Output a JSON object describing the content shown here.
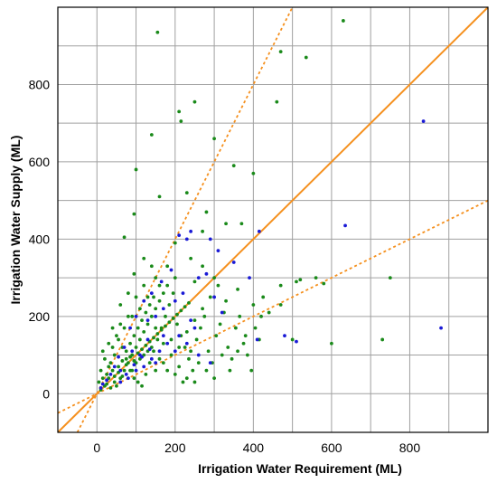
{
  "chart_data": {
    "type": "scatter",
    "xlabel": "Irrigation Water Requirement (ML)",
    "ylabel": "Irrigation Water Supply (ML)",
    "xlim": [
      -100,
      1000
    ],
    "ylim": [
      -100,
      1000
    ],
    "x_ticks": [
      "0",
      "200",
      "400",
      "600",
      "800"
    ],
    "y_ticks": [
      "0",
      "200",
      "400",
      "600",
      "800"
    ],
    "grid": true,
    "legend": "none",
    "colors": {
      "series_green": "#1a8a1a",
      "series_blue": "#1a1ad6",
      "reference_line": "#f5901e",
      "grid": "#a0a0a0"
    },
    "reference_lines": [
      {
        "style": "solid",
        "slope": 1.0
      },
      {
        "style": "dotted",
        "slope": 2.0
      },
      {
        "style": "dotted",
        "slope": 0.5
      }
    ],
    "series": [
      {
        "color": "green",
        "points": [
          [
            155,
            935
          ],
          [
            470,
            885
          ],
          [
            535,
            870
          ],
          [
            630,
            965
          ],
          [
            250,
            755
          ],
          [
            460,
            755
          ],
          [
            210,
            730
          ],
          [
            140,
            670
          ],
          [
            300,
            660
          ],
          [
            215,
            705
          ],
          [
            100,
            580
          ],
          [
            350,
            590
          ],
          [
            400,
            570
          ],
          [
            230,
            520
          ],
          [
            160,
            510
          ],
          [
            280,
            470
          ],
          [
            95,
            465
          ],
          [
            70,
            405
          ],
          [
            330,
            440
          ],
          [
            270,
            420
          ],
          [
            200,
            390
          ],
          [
            370,
            440
          ],
          [
            520,
            295
          ],
          [
            470,
            280
          ],
          [
            510,
            290
          ],
          [
            580,
            285
          ],
          [
            560,
            300
          ],
          [
            750,
            300
          ],
          [
            730,
            140
          ],
          [
            600,
            130
          ],
          [
            500,
            140
          ],
          [
            360,
            270
          ],
          [
            400,
            230
          ],
          [
            420,
            200
          ],
          [
            380,
            150
          ],
          [
            440,
            210
          ],
          [
            470,
            230
          ],
          [
            330,
            240
          ],
          [
            300,
            300
          ],
          [
            250,
            290
          ],
          [
            180,
            330
          ],
          [
            150,
            300
          ],
          [
            120,
            350
          ],
          [
            95,
            310
          ],
          [
            80,
            260
          ],
          [
            60,
            230
          ],
          [
            40,
            170
          ],
          [
            30,
            130
          ],
          [
            20,
            90
          ],
          [
            10,
            60
          ],
          [
            5,
            30
          ],
          [
            15,
            110
          ],
          [
            25,
            50
          ],
          [
            35,
            80
          ],
          [
            45,
            100
          ],
          [
            55,
            140
          ],
          [
            65,
            120
          ],
          [
            75,
            90
          ],
          [
            85,
            60
          ],
          [
            95,
            40
          ],
          [
            105,
            30
          ],
          [
            115,
            20
          ],
          [
            125,
            50
          ],
          [
            135,
            80
          ],
          [
            145,
            110
          ],
          [
            155,
            140
          ],
          [
            165,
            170
          ],
          [
            175,
            200
          ],
          [
            185,
            230
          ],
          [
            195,
            260
          ],
          [
            205,
            180
          ],
          [
            215,
            150
          ],
          [
            225,
            120
          ],
          [
            235,
            90
          ],
          [
            245,
            60
          ],
          [
            255,
            140
          ],
          [
            265,
            170
          ],
          [
            275,
            200
          ],
          [
            285,
            110
          ],
          [
            295,
            80
          ],
          [
            305,
            150
          ],
          [
            315,
            180
          ],
          [
            325,
            210
          ],
          [
            335,
            120
          ],
          [
            345,
            90
          ],
          [
            355,
            170
          ],
          [
            365,
            200
          ],
          [
            375,
            130
          ],
          [
            385,
            100
          ],
          [
            395,
            60
          ],
          [
            405,
            170
          ],
          [
            415,
            140
          ],
          [
            425,
            250
          ],
          [
            50,
            20
          ],
          [
            60,
            40
          ],
          [
            70,
            60
          ],
          [
            80,
            80
          ],
          [
            90,
            100
          ],
          [
            100,
            120
          ],
          [
            110,
            140
          ],
          [
            120,
            160
          ],
          [
            130,
            180
          ],
          [
            140,
            200
          ],
          [
            150,
            220
          ],
          [
            160,
            240
          ],
          [
            170,
            260
          ],
          [
            40,
            60
          ],
          [
            45,
            30
          ],
          [
            55,
            70
          ],
          [
            65,
            45
          ],
          [
            75,
            110
          ],
          [
            85,
            130
          ],
          [
            95,
            150
          ],
          [
            105,
            170
          ],
          [
            115,
            190
          ],
          [
            125,
            210
          ],
          [
            135,
            230
          ],
          [
            145,
            250
          ],
          [
            30,
            40
          ],
          [
            20,
            20
          ],
          [
            10,
            10
          ],
          [
            60,
            180
          ],
          [
            90,
            200
          ],
          [
            110,
            220
          ],
          [
            130,
            250
          ],
          [
            150,
            170
          ],
          [
            170,
            130
          ],
          [
            190,
            100
          ],
          [
            210,
            70
          ],
          [
            230,
            40
          ],
          [
            250,
            30
          ],
          [
            100,
            80
          ],
          [
            120,
            100
          ],
          [
            140,
            120
          ],
          [
            160,
            90
          ],
          [
            180,
            60
          ],
          [
            200,
            50
          ],
          [
            220,
            30
          ],
          [
            240,
            110
          ],
          [
            260,
            80
          ],
          [
            280,
            60
          ],
          [
            300,
            40
          ],
          [
            320,
            100
          ],
          [
            340,
            60
          ],
          [
            360,
            110
          ],
          [
            90,
            60
          ],
          [
            110,
            90
          ],
          [
            130,
            110
          ],
          [
            150,
            60
          ],
          [
            170,
            80
          ],
          [
            190,
            140
          ],
          [
            210,
            120
          ],
          [
            230,
            160
          ],
          [
            250,
            190
          ],
          [
            270,
            220
          ],
          [
            290,
            250
          ],
          [
            310,
            280
          ],
          [
            270,
            330
          ],
          [
            240,
            350
          ],
          [
            200,
            300
          ],
          [
            180,
            280
          ],
          [
            160,
            280
          ],
          [
            140,
            330
          ],
          [
            120,
            280
          ],
          [
            100,
            250
          ],
          [
            80,
            200
          ],
          [
            70,
            170
          ],
          [
            50,
            150
          ],
          [
            40,
            120
          ],
          [
            30,
            70
          ],
          [
            15,
            40
          ],
          [
            25,
            25
          ],
          [
            35,
            15
          ],
          [
            45,
            45
          ],
          [
            55,
            55
          ],
          [
            65,
            85
          ],
          [
            75,
            75
          ],
          [
            85,
            95
          ],
          [
            95,
            85
          ],
          [
            105,
            105
          ],
          [
            115,
            115
          ],
          [
            125,
            125
          ],
          [
            135,
            135
          ],
          [
            145,
            145
          ],
          [
            155,
            155
          ],
          [
            165,
            165
          ],
          [
            175,
            175
          ],
          [
            185,
            185
          ],
          [
            195,
            195
          ],
          [
            205,
            205
          ],
          [
            215,
            215
          ],
          [
            225,
            225
          ],
          [
            235,
            235
          ]
        ]
      },
      {
        "color": "blue",
        "points": [
          [
            835,
            705
          ],
          [
            635,
            435
          ],
          [
            880,
            170
          ],
          [
            510,
            135
          ],
          [
            410,
            140
          ],
          [
            290,
            400
          ],
          [
            240,
            420
          ],
          [
            210,
            410
          ],
          [
            230,
            400
          ],
          [
            310,
            370
          ],
          [
            350,
            340
          ],
          [
            190,
            320
          ],
          [
            165,
            290
          ],
          [
            140,
            260
          ],
          [
            120,
            240
          ],
          [
            100,
            200
          ],
          [
            85,
            170
          ],
          [
            70,
            120
          ],
          [
            55,
            95
          ],
          [
            45,
            70
          ],
          [
            35,
            50
          ],
          [
            25,
            35
          ],
          [
            15,
            25
          ],
          [
            10,
            15
          ],
          [
            130,
            190
          ],
          [
            150,
            200
          ],
          [
            170,
            220
          ],
          [
            200,
            240
          ],
          [
            220,
            260
          ],
          [
            260,
            300
          ],
          [
            280,
            310
          ],
          [
            300,
            250
          ],
          [
            320,
            210
          ],
          [
            250,
            170
          ],
          [
            210,
            150
          ],
          [
            180,
            130
          ],
          [
            160,
            110
          ],
          [
            140,
            90
          ],
          [
            120,
            70
          ],
          [
            100,
            60
          ],
          [
            80,
            40
          ],
          [
            60,
            30
          ],
          [
            200,
            110
          ],
          [
            230,
            130
          ],
          [
            260,
            100
          ],
          [
            290,
            80
          ],
          [
            150,
            80
          ],
          [
            110,
            100
          ],
          [
            90,
            110
          ],
          [
            130,
            140
          ],
          [
            170,
            150
          ],
          [
            240,
            190
          ],
          [
            480,
            150
          ],
          [
            390,
            300
          ],
          [
            415,
            420
          ],
          [
            60,
            60
          ],
          [
            75,
            50
          ],
          [
            95,
            75
          ],
          [
            115,
            95
          ],
          [
            135,
            115
          ]
        ]
      }
    ]
  }
}
